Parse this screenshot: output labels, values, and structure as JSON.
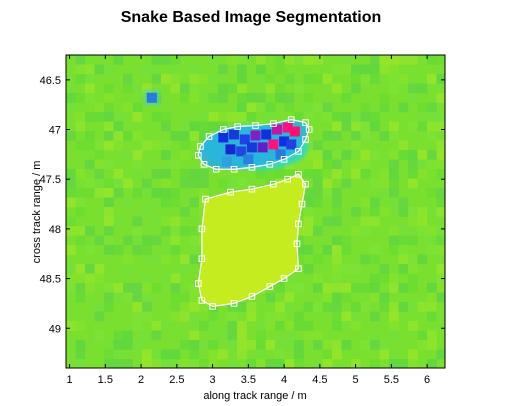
{
  "chart_data": {
    "type": "heatmap",
    "title": "Snake Based Image Segmentation",
    "xlabel": "along track range / m",
    "ylabel": "cross track range / m",
    "xlim": [
      0.95,
      6.25
    ],
    "ylim": [
      46.25,
      49.4
    ],
    "y_reversed": true,
    "xticks": [
      1,
      1.5,
      2,
      2.5,
      3,
      3.5,
      4,
      4.5,
      5,
      5.5,
      6
    ],
    "xtick_labels": [
      "1",
      "1.5",
      "2",
      "2.5",
      "3",
      "3.5",
      "4",
      "4.5",
      "5",
      "5.5",
      "6"
    ],
    "yticks": [
      46.5,
      47,
      47.5,
      48,
      48.5,
      49
    ],
    "ytick_labels": [
      "46.5",
      "47",
      "47.5",
      "48",
      "48.5",
      "49"
    ],
    "colors": {
      "background": "#7ae030",
      "flat_region": "#c4ec1e",
      "contour": "#ffffff",
      "hot_spot": "#ff1080",
      "cold_spot": "#1030e0"
    },
    "snakes": [
      {
        "label": "upper contour",
        "points": [
          [
            2.83,
            47.17
          ],
          [
            2.95,
            47.07
          ],
          [
            3.15,
            47.0
          ],
          [
            3.35,
            46.97
          ],
          [
            3.6,
            46.96
          ],
          [
            3.85,
            46.94
          ],
          [
            4.1,
            46.9
          ],
          [
            4.3,
            46.93
          ],
          [
            4.35,
            47.0
          ],
          [
            4.3,
            47.1
          ],
          [
            4.2,
            47.22
          ],
          [
            4.0,
            47.3
          ],
          [
            3.8,
            47.35
          ],
          [
            3.55,
            47.38
          ],
          [
            3.3,
            47.4
          ],
          [
            3.05,
            47.4
          ],
          [
            2.88,
            47.35
          ],
          [
            2.8,
            47.26
          ]
        ]
      },
      {
        "label": "lower contour",
        "points": [
          [
            2.9,
            47.7
          ],
          [
            3.25,
            47.63
          ],
          [
            3.55,
            47.6
          ],
          [
            3.85,
            47.55
          ],
          [
            4.05,
            47.5
          ],
          [
            4.2,
            47.45
          ],
          [
            4.3,
            47.55
          ],
          [
            4.25,
            47.75
          ],
          [
            4.2,
            47.95
          ],
          [
            4.18,
            48.15
          ],
          [
            4.2,
            48.4
          ],
          [
            4.0,
            48.5
          ],
          [
            3.8,
            48.58
          ],
          [
            3.55,
            48.68
          ],
          [
            3.3,
            48.75
          ],
          [
            3.0,
            48.78
          ],
          [
            2.85,
            48.72
          ],
          [
            2.8,
            48.55
          ],
          [
            2.85,
            48.3
          ],
          [
            2.85,
            48.0
          ]
        ]
      }
    ],
    "features": [
      {
        "label": "warm blob",
        "cx": 3.6,
        "cy": 47.18,
        "rx": 0.7,
        "ry": 0.18
      },
      {
        "label": "small cold spot",
        "cx": 2.15,
        "cy": 46.68,
        "rx": 0.06,
        "ry": 0.06
      }
    ]
  }
}
